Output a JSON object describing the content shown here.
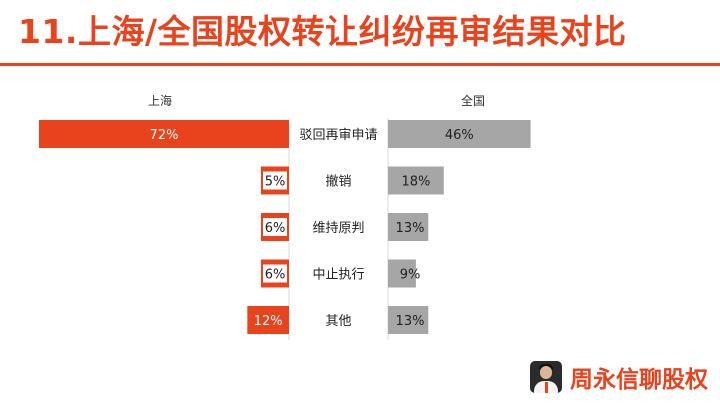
{
  "header": {
    "title": "11.上海/全国股权转让纠纷再审结果对比"
  },
  "brand": {
    "name": "周永信聊股权",
    "avatar_icon": "person-avatar-icon"
  },
  "colors": {
    "accent": "#e8431d",
    "left_bar": "#e8431d",
    "right_bar": "#a6a6a6"
  },
  "chart_data": {
    "type": "bar",
    "orientation": "horizontal-diverging",
    "series": [
      {
        "name": "上海",
        "values": [
          72,
          5,
          6,
          6,
          12
        ],
        "color": "#e8431d",
        "labels": [
          "72%",
          "5%",
          "6%",
          "6%",
          "12%"
        ]
      },
      {
        "name": "全国",
        "values": [
          46,
          18,
          13,
          9,
          13
        ],
        "color": "#a6a6a6",
        "labels": [
          "46%",
          "18%",
          "13%",
          "9%",
          "13%"
        ]
      }
    ],
    "categories": [
      "驳回再审申请",
      "撤销",
      "维持原判",
      "中止执行",
      "其他"
    ],
    "unit": "%",
    "xlim": [
      0,
      100
    ],
    "legend": "column headers above each side"
  }
}
